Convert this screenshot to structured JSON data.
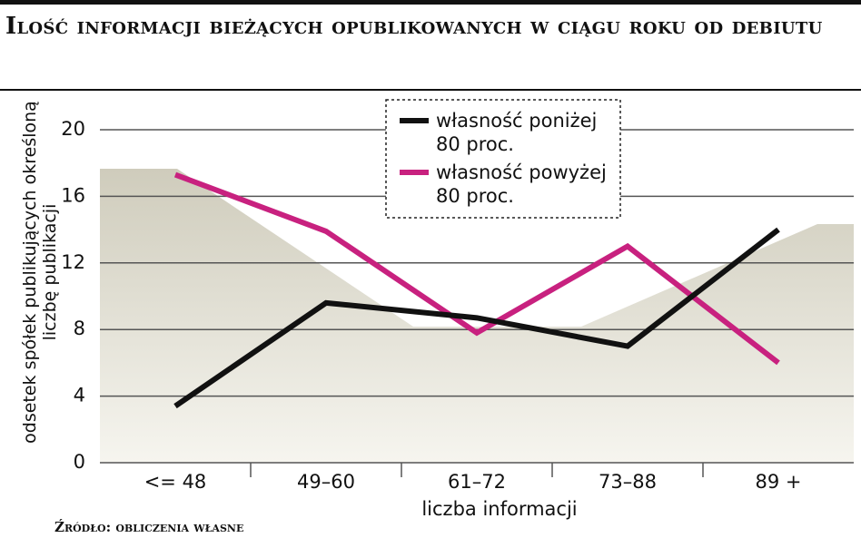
{
  "chart_data": {
    "type": "line",
    "title": "Ilość informacji bieżących opublikowanych w ciągu roku od debiutu",
    "y_label": "odsetek spółek publikujących określoną liczbę publikacji",
    "x_label": "liczba informacji",
    "source": "Źródło: obliczenia własne",
    "categories": [
      "<= 48",
      "49–60",
      "61–72",
      "73–88",
      "89 +"
    ],
    "series": [
      {
        "name": "własność poniżej 80 proc.",
        "color": "#111111",
        "values": [
          3.4,
          9.6,
          8.7,
          7.0,
          14.0
        ]
      },
      {
        "name": "własność powyżej 80 proc.",
        "color": "#c8217f",
        "values": [
          17.3,
          13.9,
          7.8,
          13.0,
          6.0
        ]
      }
    ],
    "ylim": [
      0,
      20
    ],
    "yticks": [
      0,
      4,
      8,
      12,
      16,
      20
    ],
    "grid": true
  }
}
